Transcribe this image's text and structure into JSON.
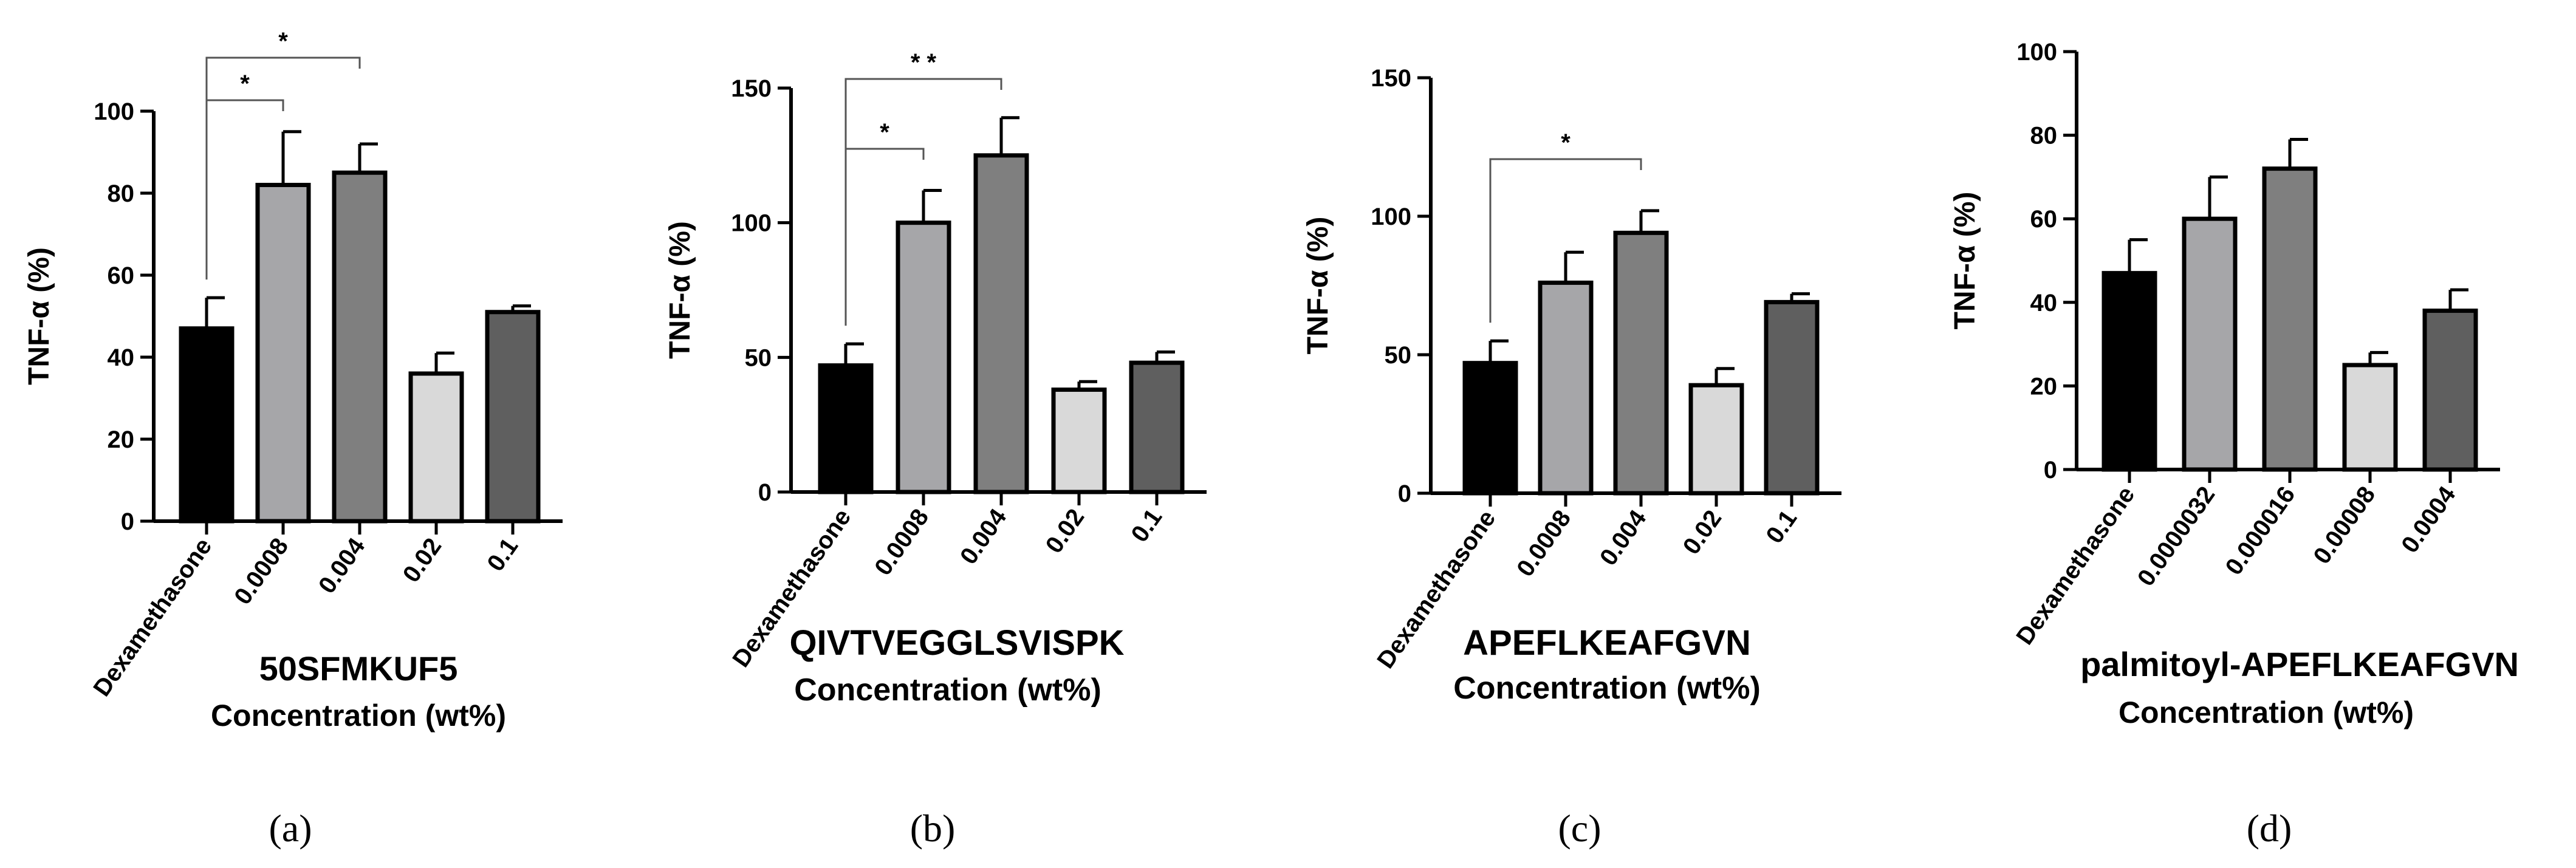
{
  "chart_data": [
    {
      "type": "bar",
      "panel_label": "(a)",
      "title": "50SFMKUF5",
      "xlabel": "Concentration (wt%)",
      "ylabel": "TNF-α (%)",
      "ylim": [
        0,
        100
      ],
      "yticks": [
        "0",
        "20",
        "40",
        "60",
        "80",
        "100"
      ],
      "categories": [
        "Dexamethasone",
        "0.0008",
        "0.004",
        "0.02",
        "0.1"
      ],
      "values": [
        47,
        82,
        85,
        36,
        51
      ],
      "errors": [
        7.5,
        13,
        7,
        5,
        1.5
      ],
      "colors": [
        "#000000",
        "#a6a6a9",
        "#7f7f7f",
        "#d9d9d9",
        "#5f5f5f"
      ],
      "significance": [
        {
          "from": 0,
          "to": 1,
          "label": "*"
        },
        {
          "from": 0,
          "to": 2,
          "label": "*"
        }
      ]
    },
    {
      "type": "bar",
      "panel_label": "(b)",
      "title": "QIVTVEGGLSVISPK",
      "xlabel": "Concentration (wt%)",
      "ylabel": "TNF-α (%)",
      "ylim": [
        0,
        150
      ],
      "yticks": [
        "0",
        "50",
        "100",
        "150"
      ],
      "categories": [
        "Dexamethasone",
        "0.0008",
        "0.004",
        "0.02",
        "0.1"
      ],
      "values": [
        47,
        100,
        125,
        38,
        48
      ],
      "errors": [
        8,
        12,
        14,
        3,
        4
      ],
      "colors": [
        "#000000",
        "#a6a6a9",
        "#7f7f7f",
        "#d9d9d9",
        "#5f5f5f"
      ],
      "significance": [
        {
          "from": 0,
          "to": 1,
          "label": "*"
        },
        {
          "from": 0,
          "to": 2,
          "label": "* *"
        }
      ]
    },
    {
      "type": "bar",
      "panel_label": "(c)",
      "title": "APEFLKEAFGVN",
      "xlabel": "Concentration (wt%)",
      "ylabel": "TNF-α (%)",
      "ylim": [
        0,
        150
      ],
      "yticks": [
        "0",
        "50",
        "100",
        "150"
      ],
      "categories": [
        "Dexamethasone",
        "0.0008",
        "0.004",
        "0.02",
        "0.1"
      ],
      "values": [
        47,
        76,
        94,
        39,
        69
      ],
      "errors": [
        8,
        11,
        8,
        6,
        3
      ],
      "colors": [
        "#000000",
        "#a6a6a9",
        "#7f7f7f",
        "#d9d9d9",
        "#5f5f5f"
      ],
      "significance": [
        {
          "from": 0,
          "to": 2,
          "label": "*"
        }
      ]
    },
    {
      "type": "bar",
      "panel_label": "(d)",
      "title": "palmitoyl-APEFLKEAFGVN",
      "xlabel": "Concentration (wt%)",
      "ylabel": "TNF-α (%)",
      "ylim": [
        0,
        100
      ],
      "yticks": [
        "0",
        "20",
        "40",
        "60",
        "80",
        "100"
      ],
      "categories": [
        "Dexamethasone",
        "0.0000032",
        "0.000016",
        "0.00008",
        "0.0004"
      ],
      "values": [
        47,
        60,
        72,
        25,
        38
      ],
      "errors": [
        8,
        10,
        7,
        3,
        5
      ],
      "colors": [
        "#000000",
        "#a6a6a9",
        "#7f7f7f",
        "#d9d9d9",
        "#5f5f5f"
      ],
      "significance": []
    }
  ]
}
